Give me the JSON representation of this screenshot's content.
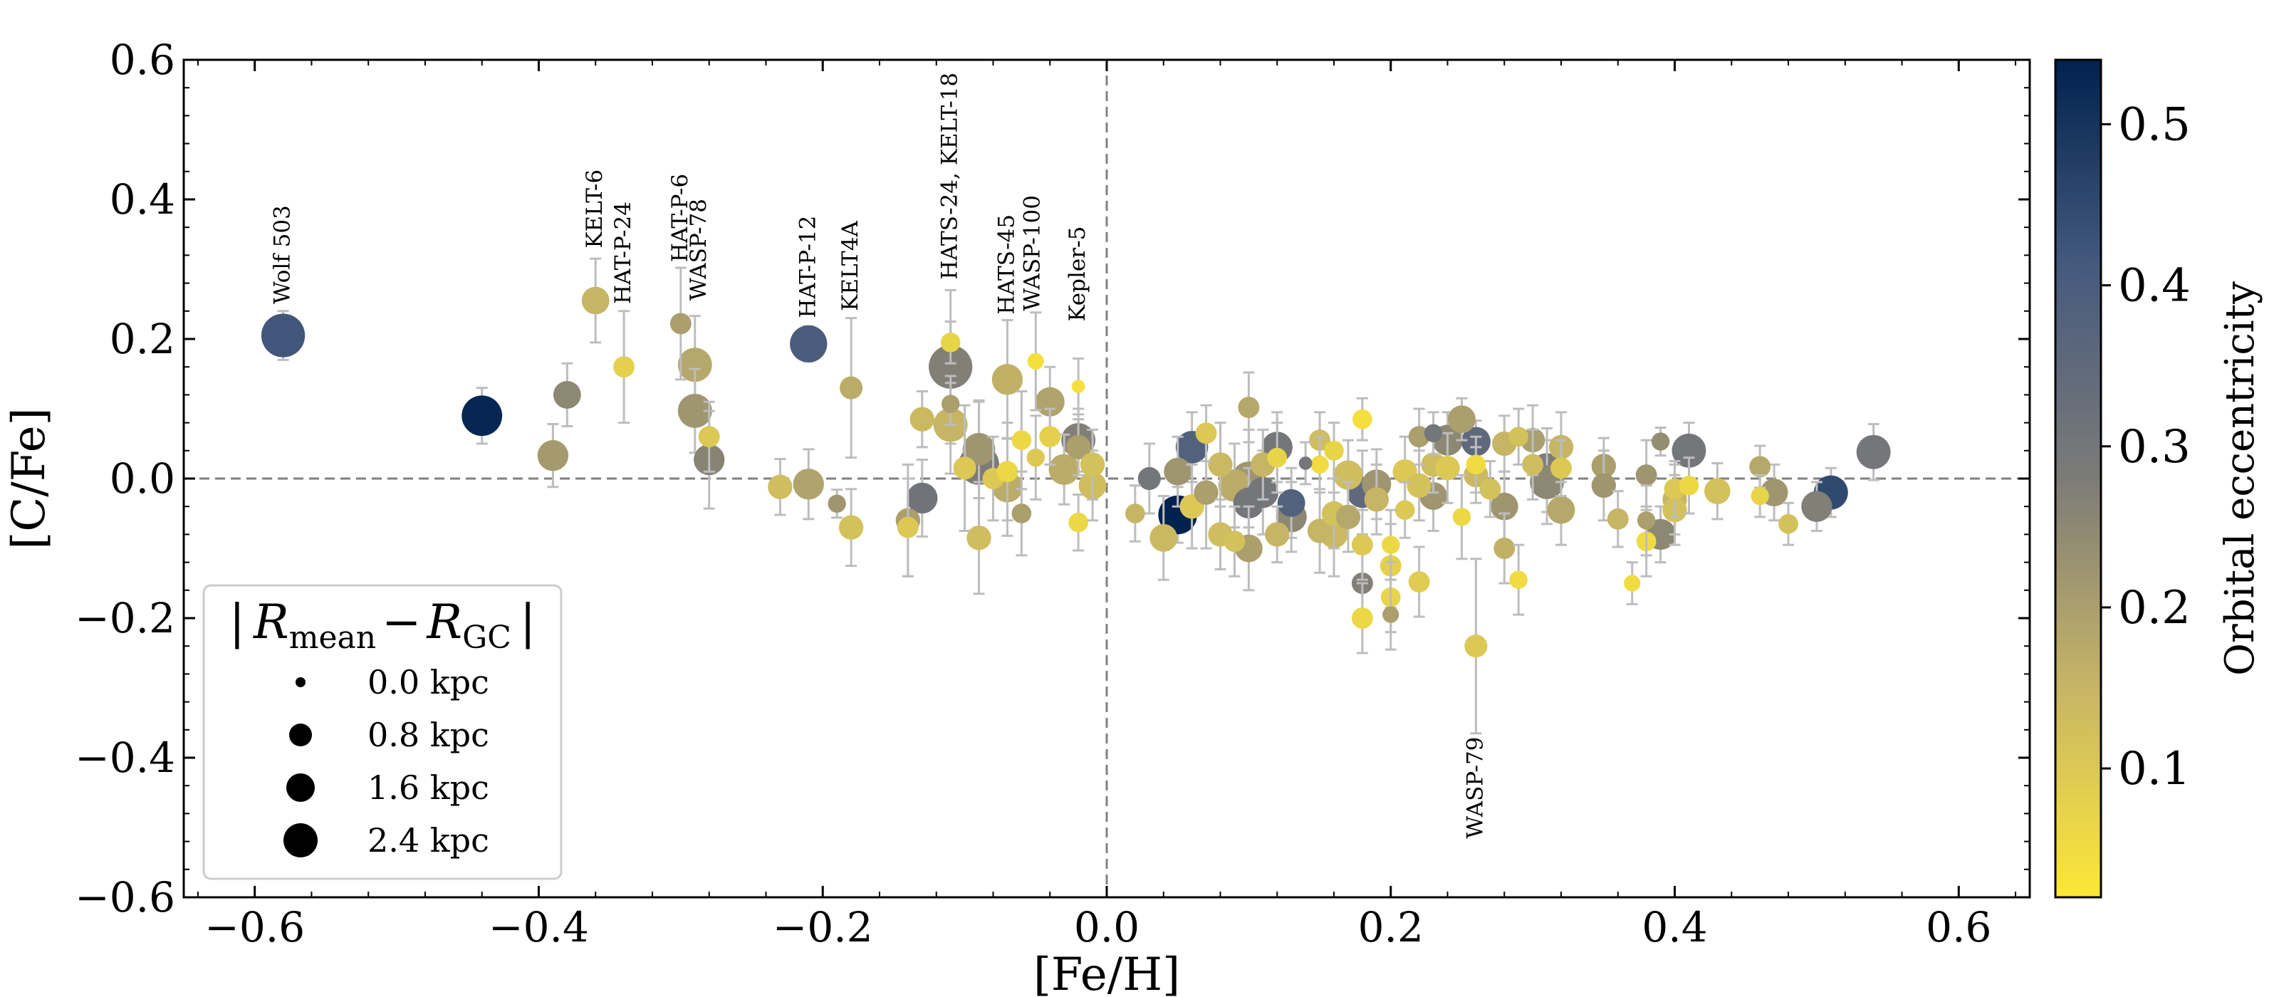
{
  "chart_data": {
    "type": "scatter",
    "title": "",
    "xlabel": "[Fe/H]",
    "ylabel": "[C/Fe]",
    "xlim": [
      -0.65,
      0.65
    ],
    "ylim": [
      -0.6,
      0.6
    ],
    "xticks": [
      -0.6,
      -0.4,
      -0.2,
      0.0,
      0.2,
      0.4,
      0.6
    ],
    "yticks": [
      -0.6,
      -0.4,
      -0.2,
      0.0,
      0.2,
      0.4,
      0.6
    ],
    "xtick_labels": [
      "−0.6",
      "−0.4",
      "−0.2",
      "0.0",
      "0.2",
      "0.4",
      "0.6"
    ],
    "ytick_labels": [
      "−0.6",
      "−0.4",
      "−0.2",
      "0.0",
      "0.2",
      "0.4",
      "0.6"
    ],
    "reference_lines": {
      "x": 0.0,
      "y": 0.0,
      "style": "dashed",
      "color": "#808080"
    },
    "colorbar": {
      "label": "Orbital eccentricity",
      "range": [
        0.02,
        0.54
      ],
      "ticks": [
        0.1,
        0.2,
        0.3,
        0.4,
        0.5
      ],
      "tick_labels": [
        "0.1",
        "0.2",
        "0.3",
        "0.4",
        "0.5"
      ],
      "colors": [
        "#fde737",
        "#c7b566",
        "#7c7b78",
        "#465a7e",
        "#00224e"
      ]
    },
    "size_legend": {
      "title_main": "R",
      "title_sub1": "mean",
      "title_sep": "−",
      "title_main2": "R",
      "title_sub2": "GC",
      "title_bar": "|",
      "placement": "lower-left",
      "entries": [
        {
          "label": "0.0 kpc",
          "value": 0.0
        },
        {
          "label": "0.8 kpc",
          "value": 0.8
        },
        {
          "label": "1.6 kpc",
          "value": 1.6
        },
        {
          "label": "2.4 kpc",
          "value": 2.4
        }
      ]
    },
    "points": [
      {
        "x": -0.58,
        "y": 0.205,
        "err": 0.035,
        "size": 2.2,
        "ecc": 0.42
      },
      {
        "x": -0.44,
        "y": 0.09,
        "err": 0.04,
        "size": 2.0,
        "ecc": 0.53
      },
      {
        "x": -0.39,
        "y": 0.033,
        "err": 0.045,
        "size": 1.4,
        "ecc": 0.21
      },
      {
        "x": -0.38,
        "y": 0.12,
        "err": 0.045,
        "size": 1.2,
        "ecc": 0.25
      },
      {
        "x": -0.36,
        "y": 0.255,
        "err": 0.06,
        "size": 1.2,
        "ecc": 0.15
      },
      {
        "x": -0.34,
        "y": 0.16,
        "err": 0.08,
        "size": 0.8,
        "ecc": 0.08
      },
      {
        "x": -0.3,
        "y": 0.222,
        "err": 0.08,
        "size": 0.8,
        "ecc": 0.2
      },
      {
        "x": -0.29,
        "y": 0.163,
        "err": 0.07,
        "size": 1.6,
        "ecc": 0.18
      },
      {
        "x": -0.29,
        "y": 0.097,
        "err": 0.06,
        "size": 1.6,
        "ecc": 0.22
      },
      {
        "x": -0.28,
        "y": 0.06,
        "err": 0.05,
        "size": 0.8,
        "ecc": 0.1
      },
      {
        "x": -0.28,
        "y": 0.027,
        "err": 0.07,
        "size": 1.4,
        "ecc": 0.26
      },
      {
        "x": -0.23,
        "y": -0.012,
        "err": 0.04,
        "size": 1.0,
        "ecc": 0.13
      },
      {
        "x": -0.21,
        "y": -0.008,
        "err": 0.05,
        "size": 1.4,
        "ecc": 0.19
      },
      {
        "x": -0.21,
        "y": 0.193,
        "err": 0.025,
        "size": 1.8,
        "ecc": 0.4
      },
      {
        "x": -0.19,
        "y": -0.036,
        "err": 0.02,
        "size": 0.6,
        "ecc": 0.22
      },
      {
        "x": -0.18,
        "y": 0.13,
        "err": 0.1,
        "size": 0.9,
        "ecc": 0.17
      },
      {
        "x": -0.18,
        "y": -0.07,
        "err": 0.055,
        "size": 1.0,
        "ecc": 0.12
      },
      {
        "x": -0.14,
        "y": -0.06,
        "err": 0.08,
        "size": 1.0,
        "ecc": 0.2
      },
      {
        "x": -0.14,
        "y": -0.07,
        "err": 0.07,
        "size": 0.8,
        "ecc": 0.1
      },
      {
        "x": -0.13,
        "y": -0.028,
        "err": 0.055,
        "size": 1.4,
        "ecc": 0.31
      },
      {
        "x": -0.13,
        "y": 0.085,
        "err": 0.04,
        "size": 1.0,
        "ecc": 0.14
      },
      {
        "x": -0.11,
        "y": 0.16,
        "err": 0.11,
        "size": 2.2,
        "ecc": 0.27
      },
      {
        "x": -0.11,
        "y": 0.195,
        "err": 0.03,
        "size": 0.7,
        "ecc": 0.07
      },
      {
        "x": -0.11,
        "y": 0.077,
        "err": 0.07,
        "size": 1.6,
        "ecc": 0.15
      },
      {
        "x": -0.11,
        "y": 0.107,
        "err": 0.03,
        "size": 0.6,
        "ecc": 0.2
      },
      {
        "x": -0.1,
        "y": 0.015,
        "err": 0.09,
        "size": 0.9,
        "ecc": 0.1
      },
      {
        "x": -0.09,
        "y": 0.042,
        "err": 0.07,
        "size": 1.5,
        "ecc": 0.22
      },
      {
        "x": -0.09,
        "y": 0.02,
        "err": 0.09,
        "size": 2.0,
        "ecc": 0.28
      },
      {
        "x": -0.09,
        "y": -0.085,
        "err": 0.08,
        "size": 1.0,
        "ecc": 0.13
      },
      {
        "x": -0.08,
        "y": 0.0,
        "err": 0.06,
        "size": 0.8,
        "ecc": 0.1
      },
      {
        "x": -0.07,
        "y": 0.142,
        "err": 0.085,
        "size": 1.4,
        "ecc": 0.16
      },
      {
        "x": -0.07,
        "y": -0.012,
        "err": 0.07,
        "size": 1.4,
        "ecc": 0.17
      },
      {
        "x": -0.07,
        "y": 0.01,
        "err": 0.07,
        "size": 0.8,
        "ecc": 0.06
      },
      {
        "x": -0.06,
        "y": 0.055,
        "err": 0.07,
        "size": 0.7,
        "ecc": 0.06
      },
      {
        "x": -0.06,
        "y": -0.05,
        "err": 0.06,
        "size": 0.7,
        "ecc": 0.2
      },
      {
        "x": -0.05,
        "y": 0.168,
        "err": 0.07,
        "size": 0.5,
        "ecc": 0.04
      },
      {
        "x": -0.05,
        "y": 0.03,
        "err": 0.06,
        "size": 0.6,
        "ecc": 0.1
      },
      {
        "x": -0.04,
        "y": 0.11,
        "err": 0.05,
        "size": 1.3,
        "ecc": 0.19
      },
      {
        "x": -0.04,
        "y": 0.06,
        "err": 0.04,
        "size": 0.8,
        "ecc": 0.08
      },
      {
        "x": -0.03,
        "y": 0.013,
        "err": 0.05,
        "size": 1.4,
        "ecc": 0.17
      },
      {
        "x": -0.02,
        "y": 0.055,
        "err": 0.045,
        "size": 1.6,
        "ecc": 0.27
      },
      {
        "x": -0.02,
        "y": 0.132,
        "err": 0.04,
        "size": 0.3,
        "ecc": 0.04
      },
      {
        "x": -0.02,
        "y": 0.045,
        "err": 0.04,
        "size": 1.0,
        "ecc": 0.2
      },
      {
        "x": -0.02,
        "y": -0.063,
        "err": 0.04,
        "size": 0.7,
        "ecc": 0.06
      },
      {
        "x": -0.01,
        "y": -0.01,
        "err": 0.05,
        "size": 1.2,
        "ecc": 0.13
      },
      {
        "x": -0.01,
        "y": 0.02,
        "err": 0.05,
        "size": 1.0,
        "ecc": 0.12
      },
      {
        "x": 0.02,
        "y": -0.05,
        "err": 0.04,
        "size": 0.7,
        "ecc": 0.15
      },
      {
        "x": 0.03,
        "y": 0.0,
        "err": 0.05,
        "size": 0.9,
        "ecc": 0.3
      },
      {
        "x": 0.04,
        "y": -0.085,
        "err": 0.06,
        "size": 1.2,
        "ecc": 0.14
      },
      {
        "x": 0.05,
        "y": -0.052,
        "err": 0.04,
        "size": 1.9,
        "ecc": 0.54
      },
      {
        "x": 0.05,
        "y": 0.01,
        "err": 0.05,
        "size": 1.2,
        "ecc": 0.22
      },
      {
        "x": 0.06,
        "y": 0.045,
        "err": 0.05,
        "size": 1.5,
        "ecc": 0.38
      },
      {
        "x": 0.06,
        "y": -0.04,
        "err": 0.06,
        "size": 1.0,
        "ecc": 0.1
      },
      {
        "x": 0.07,
        "y": 0.065,
        "err": 0.04,
        "size": 0.8,
        "ecc": 0.1
      },
      {
        "x": 0.07,
        "y": -0.02,
        "err": 0.08,
        "size": 1.0,
        "ecc": 0.2
      },
      {
        "x": 0.08,
        "y": 0.02,
        "err": 0.06,
        "size": 1.0,
        "ecc": 0.14
      },
      {
        "x": 0.08,
        "y": -0.08,
        "err": 0.05,
        "size": 1.0,
        "ecc": 0.13
      },
      {
        "x": 0.09,
        "y": -0.01,
        "err": 0.06,
        "size": 1.5,
        "ecc": 0.17
      },
      {
        "x": 0.09,
        "y": -0.09,
        "err": 0.05,
        "size": 0.8,
        "ecc": 0.12
      },
      {
        "x": 0.1,
        "y": 0.0,
        "err": 0.07,
        "size": 1.6,
        "ecc": 0.22
      },
      {
        "x": 0.1,
        "y": -0.035,
        "err": 0.05,
        "size": 1.4,
        "ecc": 0.3
      },
      {
        "x": 0.1,
        "y": 0.102,
        "err": 0.05,
        "size": 0.8,
        "ecc": 0.18
      },
      {
        "x": 0.1,
        "y": -0.1,
        "err": 0.06,
        "size": 1.2,
        "ecc": 0.2
      },
      {
        "x": 0.11,
        "y": -0.02,
        "err": 0.06,
        "size": 1.4,
        "ecc": 0.3
      },
      {
        "x": 0.11,
        "y": 0.02,
        "err": 0.05,
        "size": 1.0,
        "ecc": 0.15
      },
      {
        "x": 0.12,
        "y": 0.045,
        "err": 0.05,
        "size": 1.4,
        "ecc": 0.3
      },
      {
        "x": 0.12,
        "y": -0.08,
        "err": 0.04,
        "size": 1.0,
        "ecc": 0.15
      },
      {
        "x": 0.12,
        "y": 0.03,
        "err": 0.05,
        "size": 0.7,
        "ecc": 0.07
      },
      {
        "x": 0.13,
        "y": -0.035,
        "err": 0.05,
        "size": 1.2,
        "ecc": 0.38
      },
      {
        "x": 0.13,
        "y": -0.055,
        "err": 0.05,
        "size": 1.4,
        "ecc": 0.25
      },
      {
        "x": 0.14,
        "y": 0.022,
        "err": 0.03,
        "size": 0.3,
        "ecc": 0.3
      },
      {
        "x": 0.15,
        "y": -0.075,
        "err": 0.06,
        "size": 1.0,
        "ecc": 0.15
      },
      {
        "x": 0.15,
        "y": 0.055,
        "err": 0.04,
        "size": 0.8,
        "ecc": 0.13
      },
      {
        "x": 0.15,
        "y": 0.02,
        "err": 0.04,
        "size": 0.6,
        "ecc": 0.05
      },
      {
        "x": 0.16,
        "y": -0.08,
        "err": 0.06,
        "size": 1.2,
        "ecc": 0.14
      },
      {
        "x": 0.16,
        "y": -0.05,
        "err": 0.05,
        "size": 1.0,
        "ecc": 0.12
      },
      {
        "x": 0.16,
        "y": 0.04,
        "err": 0.04,
        "size": 0.7,
        "ecc": 0.07
      },
      {
        "x": 0.17,
        "y": 0.005,
        "err": 0.05,
        "size": 1.3,
        "ecc": 0.13
      },
      {
        "x": 0.17,
        "y": -0.055,
        "err": 0.05,
        "size": 1.0,
        "ecc": 0.18
      },
      {
        "x": 0.18,
        "y": 0.085,
        "err": 0.03,
        "size": 0.7,
        "ecc": 0.04
      },
      {
        "x": 0.18,
        "y": -0.15,
        "err": 0.05,
        "size": 0.8,
        "ecc": 0.27
      },
      {
        "x": 0.18,
        "y": -0.2,
        "err": 0.05,
        "size": 0.8,
        "ecc": 0.06
      },
      {
        "x": 0.18,
        "y": -0.095,
        "err": 0.05,
        "size": 0.8,
        "ecc": 0.1
      },
      {
        "x": 0.18,
        "y": -0.02,
        "err": 0.06,
        "size": 1.4,
        "ecc": 0.35
      },
      {
        "x": 0.19,
        "y": -0.008,
        "err": 0.05,
        "size": 1.3,
        "ecc": 0.22
      },
      {
        "x": 0.19,
        "y": -0.03,
        "err": 0.05,
        "size": 1.0,
        "ecc": 0.15
      },
      {
        "x": 0.2,
        "y": -0.125,
        "err": 0.06,
        "size": 0.8,
        "ecc": 0.08
      },
      {
        "x": 0.2,
        "y": -0.17,
        "err": 0.05,
        "size": 0.7,
        "ecc": 0.07
      },
      {
        "x": 0.2,
        "y": -0.195,
        "err": 0.05,
        "size": 0.5,
        "ecc": 0.2
      },
      {
        "x": 0.2,
        "y": -0.095,
        "err": 0.05,
        "size": 0.6,
        "ecc": 0.06
      },
      {
        "x": 0.21,
        "y": 0.01,
        "err": 0.05,
        "size": 1.0,
        "ecc": 0.1
      },
      {
        "x": 0.21,
        "y": -0.045,
        "err": 0.04,
        "size": 0.7,
        "ecc": 0.1
      },
      {
        "x": 0.22,
        "y": 0.06,
        "err": 0.04,
        "size": 0.8,
        "ecc": 0.2
      },
      {
        "x": 0.22,
        "y": -0.148,
        "err": 0.05,
        "size": 0.8,
        "ecc": 0.09
      },
      {
        "x": 0.22,
        "y": -0.01,
        "err": 0.05,
        "size": 1.0,
        "ecc": 0.12
      },
      {
        "x": 0.23,
        "y": 0.065,
        "err": 0.03,
        "size": 0.6,
        "ecc": 0.3
      },
      {
        "x": 0.23,
        "y": 0.02,
        "err": 0.04,
        "size": 1.0,
        "ecc": 0.13
      },
      {
        "x": 0.23,
        "y": -0.025,
        "err": 0.05,
        "size": 1.2,
        "ecc": 0.22
      },
      {
        "x": 0.24,
        "y": 0.055,
        "err": 0.04,
        "size": 1.4,
        "ecc": 0.25
      },
      {
        "x": 0.24,
        "y": 0.015,
        "err": 0.05,
        "size": 1.0,
        "ecc": 0.1
      },
      {
        "x": 0.25,
        "y": 0.085,
        "err": 0.03,
        "size": 1.2,
        "ecc": 0.2
      },
      {
        "x": 0.25,
        "y": -0.055,
        "err": 0.06,
        "size": 0.6,
        "ecc": 0.06
      },
      {
        "x": 0.26,
        "y": 0.053,
        "err": 0.03,
        "size": 1.3,
        "ecc": 0.35
      },
      {
        "x": 0.26,
        "y": 0.005,
        "err": 0.04,
        "size": 1.0,
        "ecc": 0.14
      },
      {
        "x": 0.26,
        "y": 0.02,
        "err": 0.04,
        "size": 0.7,
        "ecc": 0.05
      },
      {
        "x": 0.26,
        "y": -0.24,
        "err": 0.125,
        "size": 0.9,
        "ecc": 0.1
      },
      {
        "x": 0.27,
        "y": -0.015,
        "err": 0.04,
        "size": 0.8,
        "ecc": 0.12
      },
      {
        "x": 0.28,
        "y": 0.05,
        "err": 0.04,
        "size": 1.0,
        "ecc": 0.15
      },
      {
        "x": 0.28,
        "y": -0.04,
        "err": 0.05,
        "size": 1.2,
        "ecc": 0.22
      },
      {
        "x": 0.28,
        "y": -0.1,
        "err": 0.05,
        "size": 0.8,
        "ecc": 0.16
      },
      {
        "x": 0.29,
        "y": 0.06,
        "err": 0.04,
        "size": 0.7,
        "ecc": 0.12
      },
      {
        "x": 0.29,
        "y": -0.145,
        "err": 0.05,
        "size": 0.6,
        "ecc": 0.05
      },
      {
        "x": 0.3,
        "y": 0.055,
        "err": 0.05,
        "size": 1.0,
        "ecc": 0.2
      },
      {
        "x": 0.3,
        "y": 0.02,
        "err": 0.05,
        "size": 0.8,
        "ecc": 0.13
      },
      {
        "x": 0.31,
        "y": 0.012,
        "err": 0.06,
        "size": 1.6,
        "ecc": 0.28
      },
      {
        "x": 0.31,
        "y": -0.005,
        "err": 0.06,
        "size": 1.6,
        "ecc": 0.25
      },
      {
        "x": 0.32,
        "y": 0.045,
        "err": 0.05,
        "size": 1.0,
        "ecc": 0.15
      },
      {
        "x": 0.32,
        "y": 0.015,
        "err": 0.04,
        "size": 0.8,
        "ecc": 0.1
      },
      {
        "x": 0.32,
        "y": -0.045,
        "err": 0.05,
        "size": 1.2,
        "ecc": 0.18
      },
      {
        "x": 0.35,
        "y": 0.018,
        "err": 0.04,
        "size": 1.0,
        "ecc": 0.2
      },
      {
        "x": 0.35,
        "y": -0.01,
        "err": 0.05,
        "size": 1.0,
        "ecc": 0.22
      },
      {
        "x": 0.36,
        "y": -0.058,
        "err": 0.04,
        "size": 0.8,
        "ecc": 0.15
      },
      {
        "x": 0.37,
        "y": -0.15,
        "err": 0.03,
        "size": 0.5,
        "ecc": 0.05
      },
      {
        "x": 0.38,
        "y": 0.005,
        "err": 0.05,
        "size": 0.8,
        "ecc": 0.22
      },
      {
        "x": 0.38,
        "y": -0.06,
        "err": 0.05,
        "size": 0.6,
        "ecc": 0.2
      },
      {
        "x": 0.38,
        "y": -0.09,
        "err": 0.05,
        "size": 0.7,
        "ecc": 0.05
      },
      {
        "x": 0.39,
        "y": 0.053,
        "err": 0.02,
        "size": 0.6,
        "ecc": 0.24
      },
      {
        "x": 0.39,
        "y": -0.08,
        "err": 0.04,
        "size": 1.4,
        "ecc": 0.25
      },
      {
        "x": 0.4,
        "y": -0.03,
        "err": 0.05,
        "size": 1.0,
        "ecc": 0.15
      },
      {
        "x": 0.4,
        "y": -0.045,
        "err": 0.05,
        "size": 1.0,
        "ecc": 0.12
      },
      {
        "x": 0.4,
        "y": -0.015,
        "err": 0.04,
        "size": 0.8,
        "ecc": 0.1
      },
      {
        "x": 0.41,
        "y": 0.04,
        "err": 0.04,
        "size": 1.6,
        "ecc": 0.3
      },
      {
        "x": 0.41,
        "y": -0.01,
        "err": 0.04,
        "size": 0.7,
        "ecc": 0.06
      },
      {
        "x": 0.43,
        "y": -0.018,
        "err": 0.04,
        "size": 1.1,
        "ecc": 0.12
      },
      {
        "x": 0.46,
        "y": 0.017,
        "err": 0.03,
        "size": 0.8,
        "ecc": 0.18
      },
      {
        "x": 0.46,
        "y": -0.025,
        "err": 0.03,
        "size": 0.6,
        "ecc": 0.07
      },
      {
        "x": 0.47,
        "y": -0.02,
        "err": 0.04,
        "size": 1.2,
        "ecc": 0.22
      },
      {
        "x": 0.48,
        "y": -0.065,
        "err": 0.03,
        "size": 0.7,
        "ecc": 0.12
      },
      {
        "x": 0.5,
        "y": -0.04,
        "err": 0.035,
        "size": 1.4,
        "ecc": 0.27
      },
      {
        "x": 0.51,
        "y": -0.02,
        "err": 0.035,
        "size": 1.6,
        "ecc": 0.45
      },
      {
        "x": 0.54,
        "y": 0.038,
        "err": 0.04,
        "size": 1.6,
        "ecc": 0.3
      }
    ],
    "annotations": [
      {
        "text": "Wolf 503",
        "x": -0.58,
        "y": 0.25,
        "anchor": "start"
      },
      {
        "text": "KELT-6",
        "x": -0.36,
        "y": 0.33,
        "anchor": "start"
      },
      {
        "text": "HAT-P-24",
        "x": -0.34,
        "y": 0.25,
        "anchor": "start"
      },
      {
        "text": "HAT-P-6",
        "x": -0.3,
        "y": 0.31,
        "anchor": "start"
      },
      {
        "text": "WASP-78",
        "x": -0.287,
        "y": 0.255,
        "anchor": "start"
      },
      {
        "text": "HAT-P-12",
        "x": -0.21,
        "y": 0.23,
        "anchor": "start"
      },
      {
        "text": "KELT4A",
        "x": -0.18,
        "y": 0.24,
        "anchor": "start"
      },
      {
        "text": "HATS-24, KELT-18",
        "x": -0.11,
        "y": 0.285,
        "anchor": "start"
      },
      {
        "text": "HATS-45",
        "x": -0.07,
        "y": 0.235,
        "anchor": "start"
      },
      {
        "text": "WASP-100",
        "x": -0.052,
        "y": 0.24,
        "anchor": "start"
      },
      {
        "text": "Kepler-5",
        "x": -0.02,
        "y": 0.225,
        "anchor": "start"
      },
      {
        "text": "WASP-79",
        "x": 0.26,
        "y": -0.37,
        "anchor": "end"
      }
    ]
  }
}
